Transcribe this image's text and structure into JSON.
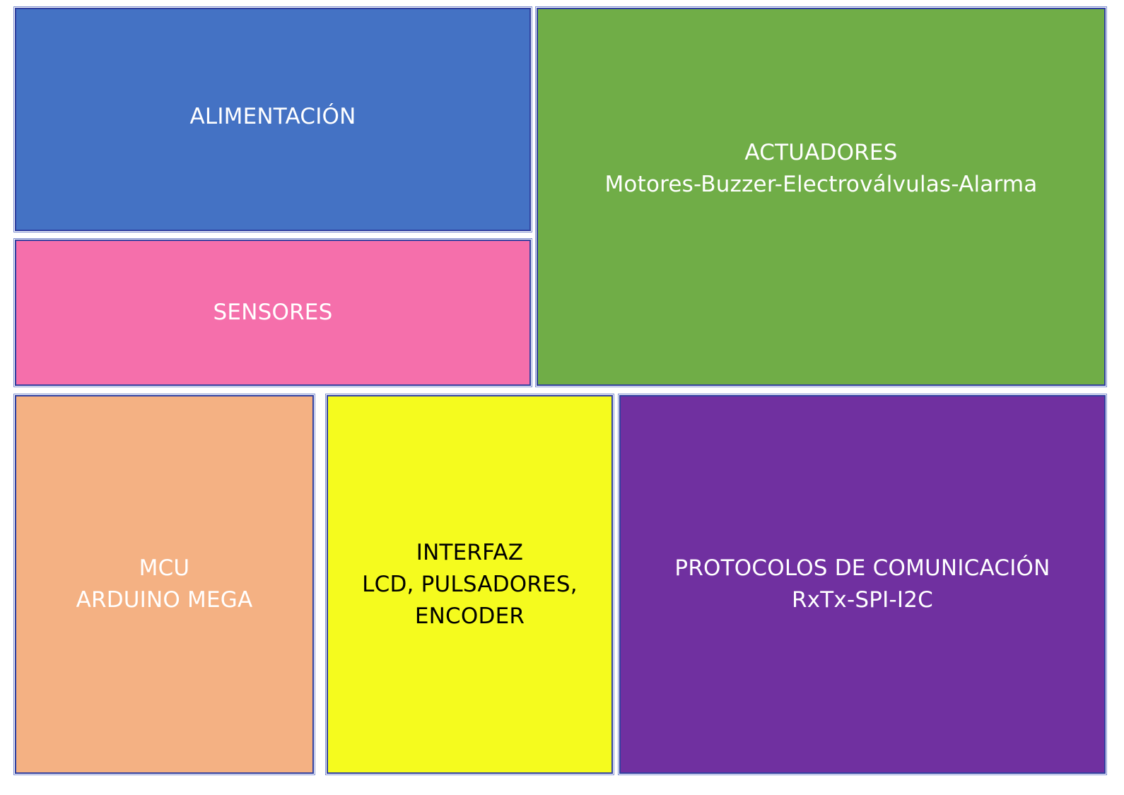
{
  "blocks": {
    "alimentacion": {
      "lines": [
        "ALIMENTACIÓN"
      ],
      "fill": "#4472c4",
      "text_color": "#ffffff"
    },
    "sensores": {
      "lines": [
        "SENSORES"
      ],
      "fill": "#f56fab",
      "text_color": "#ffffff"
    },
    "actuadores": {
      "lines": [
        "ACTUADORES",
        "Motores-Buzzer-Electroválvulas-Alarma"
      ],
      "fill": "#70ad47",
      "text_color": "#ffffff"
    },
    "mcu": {
      "lines": [
        "MCU",
        "ARDUINO MEGA"
      ],
      "fill": "#f4b183",
      "text_color": "#ffffff"
    },
    "interfaz": {
      "lines": [
        "INTERFAZ",
        "LCD, PULSADORES,",
        "ENCODER"
      ],
      "fill": "#f5fb1e",
      "text_color": "#000000"
    },
    "protocolos": {
      "lines": [
        "PROTOCOLOS DE COMUNICACIÓN",
        "RxTx-SPI-I2C"
      ],
      "fill": "#7030a0",
      "text_color": "#ffffff"
    }
  }
}
